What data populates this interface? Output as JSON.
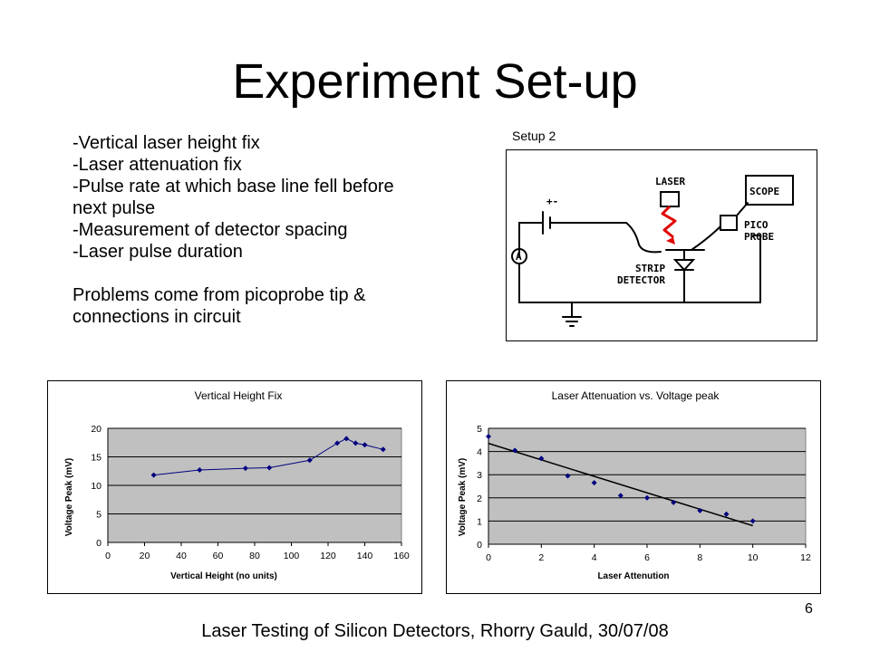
{
  "title": "Experiment Set-up",
  "bullets": [
    "-Vertical laser height fix",
    "-Laser attenuation fix",
    "-Pulse rate at which base line fell before",
    "next pulse",
    "-Measurement of detector spacing",
    "-Laser pulse duration"
  ],
  "problems": [
    "Problems come from picoprobe tip &",
    "connections in circuit"
  ],
  "setup": {
    "label": "Setup 2",
    "labels": {
      "scope": "SCOPE",
      "laser": "LASER",
      "pico": "PICO",
      "probe": "PROBE",
      "strip": "STRIP",
      "detector": "DETECTOR",
      "ammeter": "A",
      "battery": "+-"
    },
    "colors": {
      "laser_beam": "#e00000"
    }
  },
  "chart_data": [
    {
      "type": "line",
      "title": "Vertical Height Fix",
      "xlabel": "Vertical Height (no units)",
      "ylabel": "Voltage Peak (mV)",
      "xlim": [
        0,
        160
      ],
      "ylim": [
        0,
        20
      ],
      "xticks": [
        0,
        20,
        40,
        60,
        80,
        100,
        120,
        140,
        160
      ],
      "yticks": [
        0,
        5,
        10,
        15,
        20
      ],
      "grid": true,
      "plot_bg": "#c0c0c0",
      "series": [
        {
          "color": "#000080",
          "x": [
            25,
            50,
            75,
            88,
            110,
            125,
            130,
            135,
            140,
            150
          ],
          "y": [
            11.8,
            12.7,
            13.0,
            13.1,
            14.4,
            17.4,
            18.2,
            17.4,
            17.1,
            16.3
          ]
        }
      ]
    },
    {
      "type": "scatter",
      "title": "Laser Attenuation vs. Voltage peak",
      "xlabel": "Laser Attenution",
      "ylabel": "Voltage Peak (mV)",
      "xlim": [
        0,
        12
      ],
      "ylim": [
        0,
        5
      ],
      "xticks": [
        0,
        2,
        4,
        6,
        8,
        10,
        12
      ],
      "yticks": [
        0,
        1,
        2,
        3,
        4,
        5
      ],
      "grid": true,
      "plot_bg": "#c0c0c0",
      "series": [
        {
          "color": "#000080",
          "x": [
            0,
            1,
            2,
            3,
            4,
            5,
            6,
            7,
            8,
            9,
            10
          ],
          "y": [
            4.65,
            4.05,
            3.7,
            2.95,
            2.65,
            2.1,
            2.0,
            1.8,
            1.45,
            1.3,
            1.0
          ]
        }
      ],
      "trendline": {
        "x": [
          0,
          10
        ],
        "y": [
          4.35,
          0.8
        ]
      }
    }
  ],
  "page_number": "6",
  "footer": "Laser Testing of Silicon Detectors, Rhorry Gauld, 30/07/08"
}
